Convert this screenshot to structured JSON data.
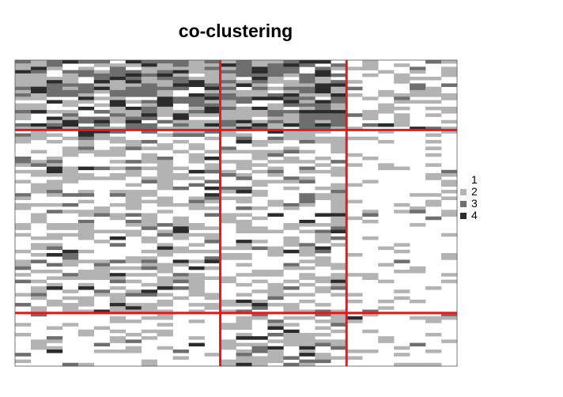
{
  "chart_data": {
    "type": "heatmap",
    "title": "co-clustering",
    "n_rows": 92,
    "n_cols": 28,
    "row_cluster_sizes": [
      21,
      55,
      16
    ],
    "col_cluster_sizes": [
      13,
      8,
      7
    ],
    "level_colors": [
      "#ffffff",
      "#b3b3b3",
      "#6e6e6e",
      "#2b2b2b"
    ],
    "block_dominant_level": [
      [
        3,
        3,
        2
      ],
      [
        2,
        2,
        1
      ],
      [
        1,
        2,
        1
      ]
    ],
    "cluster_line_color": "#e41a1c",
    "legend": {
      "placement": "right",
      "entries": [
        {
          "label": "1",
          "color": "#ffffff"
        },
        {
          "label": "2",
          "color": "#b3b3b3"
        },
        {
          "label": "3",
          "color": "#6e6e6e"
        },
        {
          "label": "4",
          "color": "#2b2b2b"
        }
      ]
    }
  }
}
